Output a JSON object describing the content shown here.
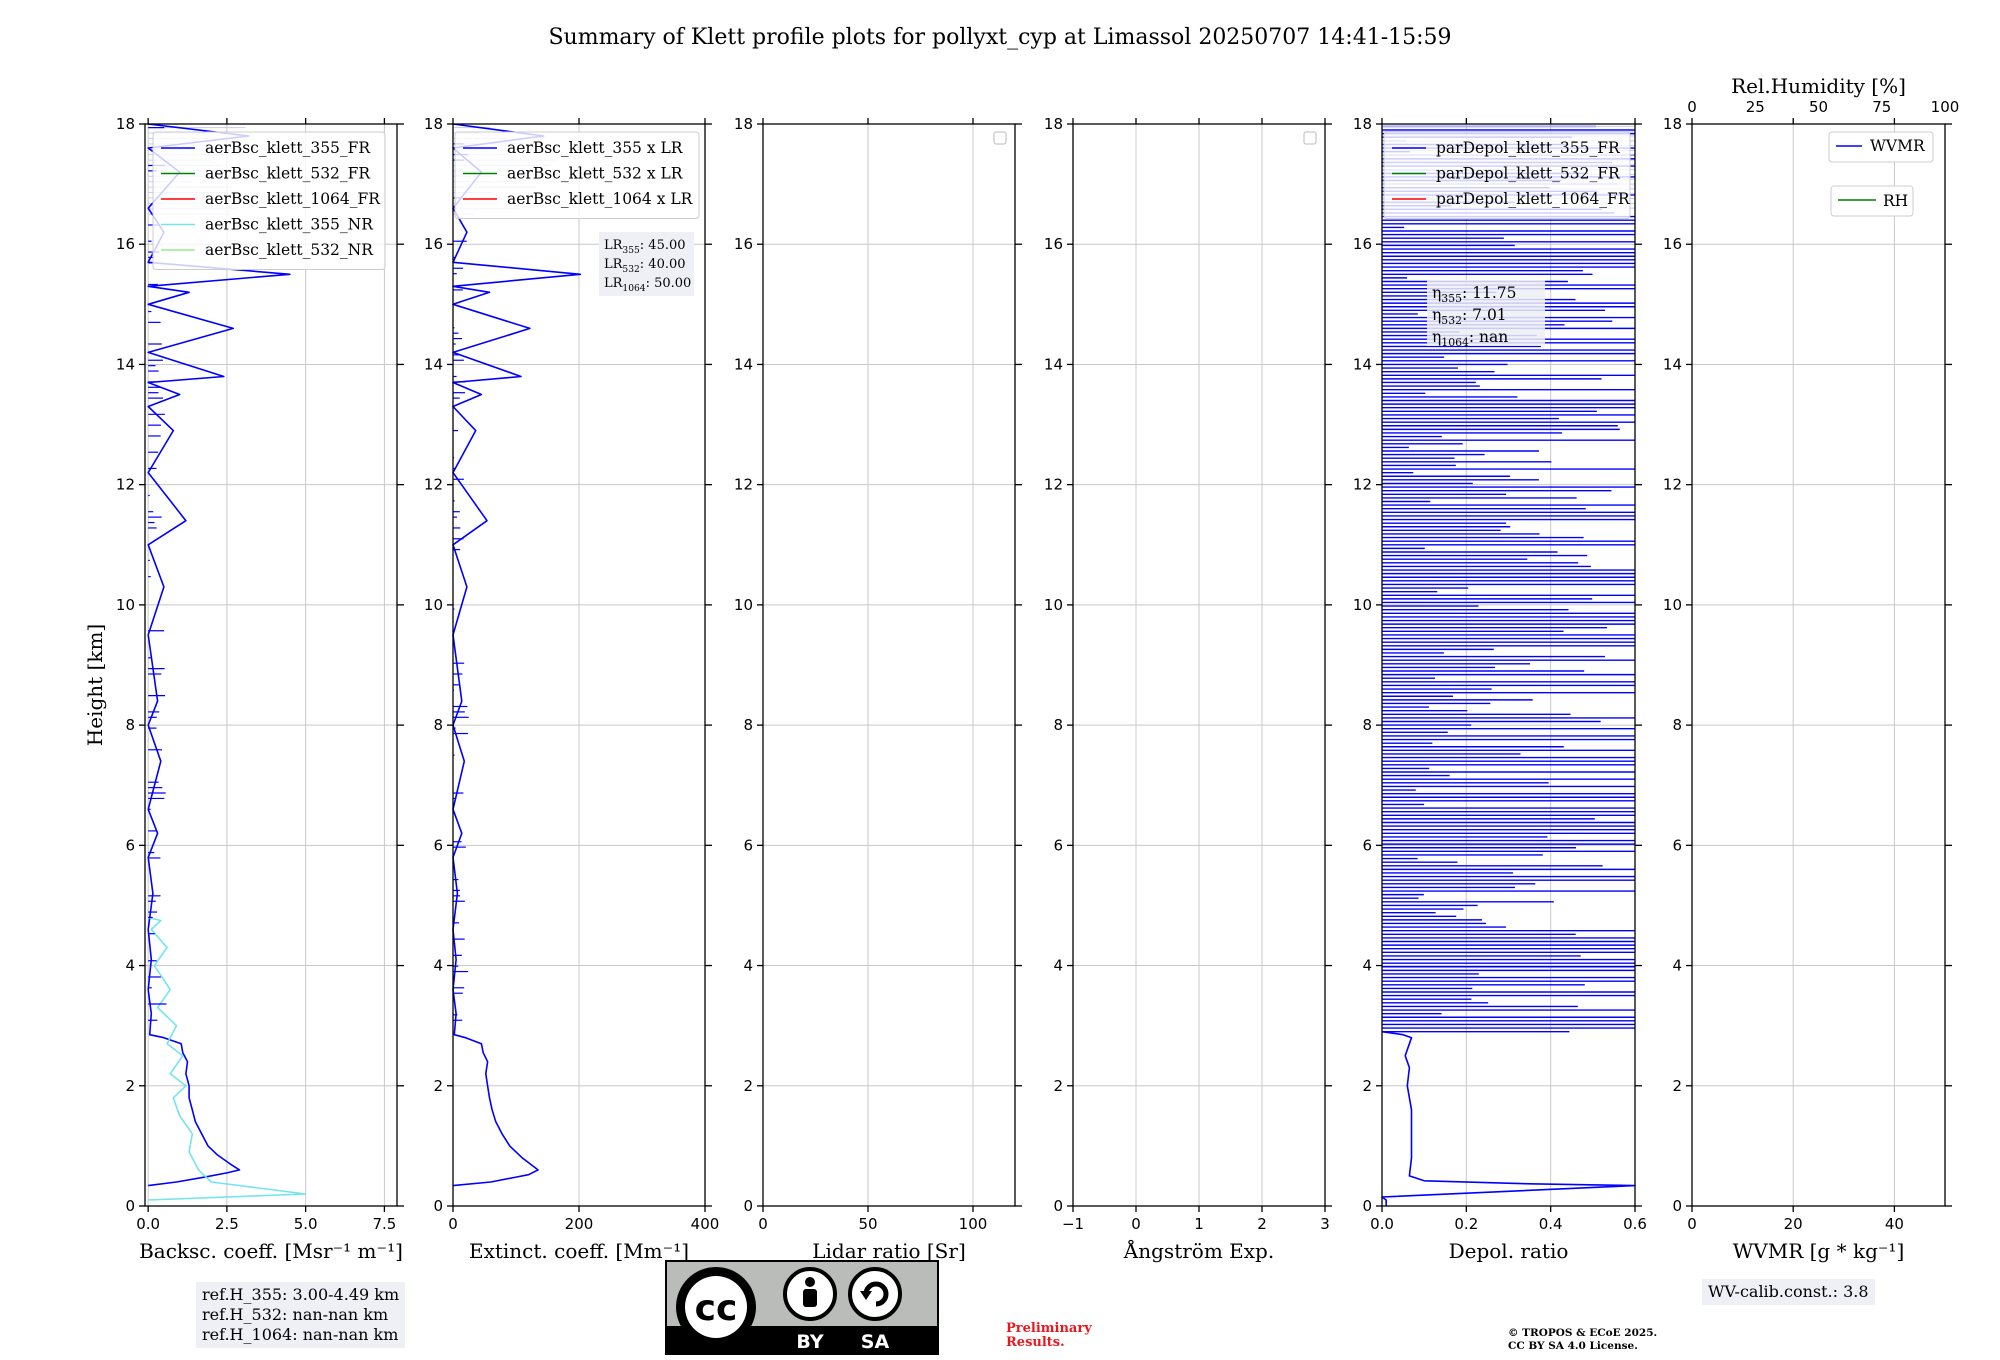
{
  "figure": {
    "title": "Summary of Klett profile plots for pollyxt_cyp at Limassol 20250707 14:41-15:59",
    "y_label": "Height [km]",
    "y_range": [
      0,
      18
    ],
    "y_ticks": [
      "0",
      "2",
      "4",
      "6",
      "8",
      "10",
      "12",
      "14",
      "16",
      "18"
    ]
  },
  "chart_data": [
    {
      "type": "line",
      "panel": "backscatter",
      "xlabel": "Backsc. coeff. [Msr⁻¹ m⁻¹]",
      "xlim": [
        -0.1,
        7.9
      ],
      "xticks": [
        0,
        2.5,
        5,
        7.5
      ],
      "xtick_labels": [
        "0.0",
        "2.5",
        "5.0",
        "7.5"
      ],
      "ylim": [
        0,
        18
      ],
      "legend": [
        "aerBsc_klett_355_FR",
        "aerBsc_klett_532_FR",
        "aerBsc_klett_1064_FR",
        "aerBsc_klett_355_NR",
        "aerBsc_klett_532_NR"
      ],
      "series": [
        {
          "name": "aerBsc_klett_355_FR",
          "color": "#0000ff",
          "points": [
            [
              0.0,
              0.34
            ],
            [
              0.9,
              0.4
            ],
            [
              1.8,
              0.48
            ],
            [
              2.5,
              0.55
            ],
            [
              2.9,
              0.6
            ],
            [
              2.6,
              0.7
            ],
            [
              2.2,
              0.85
            ],
            [
              1.9,
              1.0
            ],
            [
              1.7,
              1.2
            ],
            [
              1.5,
              1.4
            ],
            [
              1.4,
              1.6
            ],
            [
              1.3,
              1.8
            ],
            [
              1.3,
              2.0
            ],
            [
              1.2,
              2.2
            ],
            [
              1.25,
              2.4
            ],
            [
              1.1,
              2.55
            ],
            [
              1.05,
              2.7
            ],
            [
              0.5,
              2.8
            ],
            [
              0.05,
              2.85
            ],
            [
              0.1,
              3.2
            ],
            [
              0.0,
              3.6
            ],
            [
              0.1,
              4.1
            ],
            [
              0.0,
              4.6
            ],
            [
              0.15,
              5.2
            ],
            [
              0.0,
              5.8
            ],
            [
              0.3,
              6.2
            ],
            [
              0.0,
              6.6
            ],
            [
              0.4,
              7.4
            ],
            [
              0.0,
              8.0
            ],
            [
              0.3,
              8.4
            ],
            [
              0.0,
              9.5
            ],
            [
              0.5,
              10.3
            ],
            [
              0.0,
              11.0
            ],
            [
              1.2,
              11.4
            ],
            [
              0.0,
              12.2
            ],
            [
              0.8,
              12.9
            ],
            [
              0.0,
              13.3
            ],
            [
              1.0,
              13.5
            ],
            [
              0.0,
              13.7
            ],
            [
              2.4,
              13.8
            ],
            [
              0.0,
              14.2
            ],
            [
              2.7,
              14.6
            ],
            [
              0.0,
              15.0
            ],
            [
              1.3,
              15.2
            ],
            [
              0.0,
              15.3
            ],
            [
              4.5,
              15.5
            ],
            [
              0.0,
              15.7
            ],
            [
              0.5,
              16.2
            ],
            [
              0.0,
              16.6
            ],
            [
              1.0,
              17.2
            ],
            [
              0.0,
              17.6
            ],
            [
              3.2,
              17.8
            ],
            [
              0.0,
              18.0
            ]
          ]
        },
        {
          "name": "aerBsc_klett_355_NR",
          "color": "#74e4ee",
          "points": [
            [
              0.0,
              0.1
            ],
            [
              5.0,
              0.2
            ],
            [
              3.5,
              0.3
            ],
            [
              2.0,
              0.4
            ],
            [
              1.6,
              0.6
            ],
            [
              1.3,
              0.9
            ],
            [
              1.4,
              1.2
            ],
            [
              1.0,
              1.5
            ],
            [
              0.8,
              1.8
            ],
            [
              1.2,
              2.0
            ],
            [
              0.7,
              2.2
            ],
            [
              1.1,
              2.5
            ],
            [
              0.6,
              2.7
            ],
            [
              0.9,
              3.0
            ],
            [
              0.3,
              3.3
            ],
            [
              0.7,
              3.6
            ],
            [
              0.2,
              4.0
            ],
            [
              0.6,
              4.3
            ],
            [
              0.1,
              4.6
            ],
            [
              0.4,
              4.75
            ],
            [
              0.0,
              4.8
            ]
          ]
        }
      ]
    },
    {
      "type": "line",
      "panel": "extinction",
      "xlabel": "Extinct. coeff. [Mm⁻¹]",
      "xlim": [
        0,
        400
      ],
      "xticks": [
        0,
        200,
        400
      ],
      "xtick_labels": [
        "0",
        "200",
        "400"
      ],
      "ylim": [
        0,
        18
      ],
      "legend": [
        "aerBsc_klett_355 x LR",
        "aerBsc_klett_532 x LR",
        "aerBsc_klett_1064 x LR"
      ],
      "annotations": [
        "LR355: 45.00",
        "LR532: 40.00",
        "LR1064: 50.00"
      ],
      "series": [
        {
          "name": "aerBsc_klett_355 x LR",
          "color": "#0000ff",
          "points": [
            [
              0,
              0.34
            ],
            [
              60,
              0.4
            ],
            [
              100,
              0.48
            ],
            [
              120,
              0.52
            ],
            [
              135,
              0.6
            ],
            [
              110,
              0.8
            ],
            [
              90,
              1.0
            ],
            [
              78,
              1.2
            ],
            [
              68,
              1.4
            ],
            [
              62,
              1.6
            ],
            [
              58,
              1.8
            ],
            [
              55,
              2.0
            ],
            [
              52,
              2.2
            ],
            [
              55,
              2.4
            ],
            [
              48,
              2.55
            ],
            [
              45,
              2.7
            ],
            [
              20,
              2.8
            ],
            [
              2,
              2.85
            ],
            [
              5,
              3.2
            ],
            [
              0,
              3.6
            ],
            [
              5,
              4.1
            ],
            [
              0,
              4.6
            ],
            [
              7,
              5.2
            ],
            [
              0,
              5.8
            ],
            [
              14,
              6.2
            ],
            [
              0,
              6.6
            ],
            [
              18,
              7.4
            ],
            [
              0,
              8.0
            ],
            [
              14,
              8.4
            ],
            [
              0,
              9.5
            ],
            [
              22,
              10.3
            ],
            [
              0,
              11.0
            ],
            [
              54,
              11.4
            ],
            [
              0,
              12.2
            ],
            [
              36,
              12.9
            ],
            [
              0,
              13.3
            ],
            [
              45,
              13.5
            ],
            [
              0,
              13.7
            ],
            [
              108,
              13.8
            ],
            [
              0,
              14.2
            ],
            [
              122,
              14.6
            ],
            [
              0,
              15.0
            ],
            [
              58,
              15.2
            ],
            [
              0,
              15.3
            ],
            [
              202,
              15.5
            ],
            [
              0,
              15.7
            ],
            [
              22,
              16.2
            ],
            [
              0,
              16.6
            ],
            [
              45,
              17.2
            ],
            [
              0,
              17.6
            ],
            [
              144,
              17.8
            ],
            [
              0,
              18.0
            ]
          ]
        }
      ]
    },
    {
      "type": "line",
      "panel": "lidar-ratio",
      "xlabel": "Lidar ratio [Sr]",
      "xlim": [
        0,
        120
      ],
      "xticks": [
        0,
        50,
        100
      ],
      "xtick_labels": [
        "0",
        "50",
        "100"
      ],
      "ylim": [
        0,
        18
      ],
      "series": []
    },
    {
      "type": "line",
      "panel": "angstrom",
      "xlabel": "Ångström Exp.",
      "xlim": [
        -1,
        3
      ],
      "xticks": [
        -1,
        0,
        1,
        2,
        3
      ],
      "xtick_labels": [
        "−1",
        "0",
        "1",
        "2",
        "3"
      ],
      "ylim": [
        0,
        18
      ],
      "series": []
    },
    {
      "type": "line",
      "panel": "depol",
      "xlabel": "Depol. ratio",
      "xlim": [
        0,
        0.6
      ],
      "xticks": [
        0,
        0.2,
        0.4,
        0.6
      ],
      "xtick_labels": [
        "0.0",
        "0.2",
        "0.4",
        "0.6"
      ],
      "ylim": [
        0,
        18
      ],
      "legend": [
        "parDepol_klett_355_FR",
        "parDepol_klett_532_FR",
        "parDepol_klett_1064_FR"
      ],
      "annotations": [
        "η355: 11.75",
        "η532: 7.01",
        "η1064: nan"
      ],
      "series": [
        {
          "name": "parDepol_klett_355_FR",
          "color": "#0000ff",
          "points": [
            [
              0.01,
              0.0
            ],
            [
              0.01,
              0.1
            ],
            [
              0.0,
              0.15
            ],
            [
              0.6,
              0.34
            ],
            [
              0.35,
              0.37
            ],
            [
              0.1,
              0.42
            ],
            [
              0.065,
              0.5
            ],
            [
              0.07,
              0.8
            ],
            [
              0.07,
              1.2
            ],
            [
              0.07,
              1.6
            ],
            [
              0.06,
              2.0
            ],
            [
              0.065,
              2.3
            ],
            [
              0.055,
              2.5
            ],
            [
              0.065,
              2.7
            ],
            [
              0.07,
              2.8
            ],
            [
              0.05,
              2.85
            ],
            [
              0.0,
              2.9
            ]
          ]
        }
      ]
    },
    {
      "type": "line",
      "panel": "wvmr",
      "xlabel": "WVMR [g * kg⁻¹]",
      "xlim": [
        0,
        50
      ],
      "xticks": [
        0,
        20,
        40
      ],
      "xtick_labels": [
        "0",
        "20",
        "40"
      ],
      "ylim": [
        0,
        18
      ],
      "top_axis_label": "Rel.Humidity [%]",
      "top_xlim": [
        0,
        100
      ],
      "top_xticks": [
        0,
        25,
        50,
        75,
        100
      ],
      "top_xtick_labels": [
        "0",
        "25",
        "50",
        "75",
        "100"
      ],
      "legend": [
        "WVMR",
        "RH"
      ],
      "series": []
    }
  ],
  "colors": {
    "c355": "#0000ff",
    "c532": "#008000",
    "c1064": "#ff0000",
    "c355nr": "#74e4ee",
    "c532nr": "#90ee90",
    "grid": "#c8c8c8",
    "box": "#eef0f5"
  },
  "ref_box": [
    "ref.H_355: 3.00-4.49 km",
    "ref.H_532: nan-nan km",
    "ref.H_1064: nan-nan km"
  ],
  "wv_box": "WV-calib.const.: 3.8",
  "preliminary": [
    "Preliminary",
    "Results."
  ],
  "license": {
    "by": "BY",
    "sa": "SA",
    "cc": "cc",
    "line1": "© TROPOS & ECoE 2025.",
    "line2": "CC BY SA 4.0 License."
  }
}
